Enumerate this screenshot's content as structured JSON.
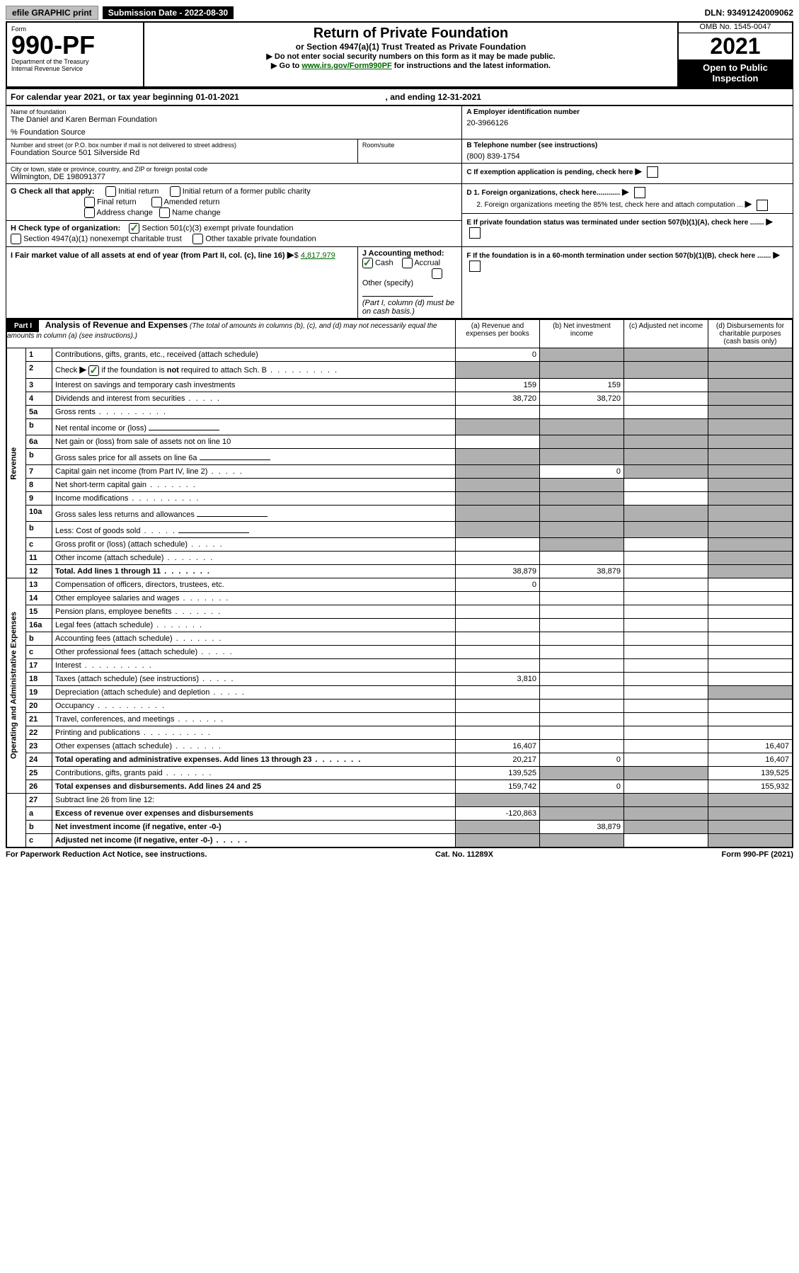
{
  "top": {
    "efile": "efile GRAPHIC print",
    "submission": "Submission Date - 2022-08-30",
    "dln": "DLN: 93491242009062"
  },
  "header": {
    "form_label": "Form",
    "form_num": "990-PF",
    "dept": "Department of the Treasury",
    "irs": "Internal Revenue Service",
    "title": "Return of Private Foundation",
    "subtitle": "or Section 4947(a)(1) Trust Treated as Private Foundation",
    "instr1": "▶ Do not enter social security numbers on this form as it may be made public.",
    "instr2_pre": "▶ Go to ",
    "instr2_link": "www.irs.gov/Form990PF",
    "instr2_post": " for instructions and the latest information.",
    "omb": "OMB No. 1545-0047",
    "year": "2021",
    "open": "Open to Public Inspection"
  },
  "calyear": {
    "text_pre": "For calendar year 2021, or tax year beginning ",
    "begin": "01-01-2021",
    "text_mid": " , and ending ",
    "end": "12-31-2021"
  },
  "info": {
    "name_label": "Name of foundation",
    "name": "The Daniel and Karen Berman Foundation",
    "care_of": "% Foundation Source",
    "addr_label": "Number and street (or P.O. box number if mail is not delivered to street address)",
    "addr": "Foundation Source 501 Silverside Rd",
    "room_label": "Room/suite",
    "city_label": "City or town, state or province, country, and ZIP or foreign postal code",
    "city": "Wilmington, DE 198091377",
    "a_label": "A Employer identification number",
    "a_val": "20-3966126",
    "b_label": "B Telephone number (see instructions)",
    "b_val": "(800) 839-1754",
    "c_label": "C If exemption application is pending, check here",
    "d1_label": "D 1. Foreign organizations, check here............",
    "d2_label": "2. Foreign organizations meeting the 85% test, check here and attach computation ...",
    "e_label": "E If private foundation status was terminated under section 507(b)(1)(A), check here .......",
    "f_label": "F If the foundation is in a 60-month termination under section 507(b)(1)(B), check here .......",
    "g_label": "G Check all that apply:",
    "g_opts": [
      "Initial return",
      "Initial return of a former public charity",
      "Final return",
      "Amended return",
      "Address change",
      "Name change"
    ],
    "h_label": "H Check type of organization:",
    "h_opt1": "Section 501(c)(3) exempt private foundation",
    "h_opt2": "Section 4947(a)(1) nonexempt charitable trust",
    "h_opt3": "Other taxable private foundation",
    "i_label": "I Fair market value of all assets at end of year (from Part II, col. (c), line 16)",
    "i_val": "4,817,979",
    "j_label": "J Accounting method:",
    "j_cash": "Cash",
    "j_accrual": "Accrual",
    "j_other": "Other (specify)",
    "j_note": "(Part I, column (d) must be on cash basis.)"
  },
  "part1": {
    "label": "Part I",
    "title": "Analysis of Revenue and Expenses",
    "note": "(The total of amounts in columns (b), (c), and (d) may not necessarily equal the amounts in column (a) (see instructions).)",
    "col_a": "(a) Revenue and expenses per books",
    "col_b": "(b) Net investment income",
    "col_c": "(c) Adjusted net income",
    "col_d": "(d) Disbursements for charitable purposes (cash basis only)"
  },
  "sections": {
    "revenue": "Revenue",
    "opex": "Operating and Administrative Expenses"
  },
  "rows": [
    {
      "n": "1",
      "desc": "Contributions, gifts, grants, etc., received (attach schedule)",
      "a": "0",
      "b": "",
      "c": "",
      "d": "",
      "grey_b": true,
      "grey_c": true,
      "grey_d": true
    },
    {
      "n": "2",
      "desc": "Check ▶ ☑ if the foundation is not required to attach Sch. B",
      "a": "",
      "b": "",
      "c": "",
      "d": "",
      "grey_a": true,
      "grey_b": true,
      "grey_c": true,
      "grey_d": true,
      "dots": true,
      "has_check": true
    },
    {
      "n": "3",
      "desc": "Interest on savings and temporary cash investments",
      "a": "159",
      "b": "159",
      "c": "",
      "d": "",
      "grey_d": true
    },
    {
      "n": "4",
      "desc": "Dividends and interest from securities",
      "a": "38,720",
      "b": "38,720",
      "c": "",
      "d": "",
      "grey_d": true,
      "dots_short": true
    },
    {
      "n": "5a",
      "desc": "Gross rents",
      "a": "",
      "b": "",
      "c": "",
      "d": "",
      "grey_d": true,
      "dots": true
    },
    {
      "n": "b",
      "desc": "Net rental income or (loss)",
      "a": "",
      "b": "",
      "c": "",
      "d": "",
      "grey_a": true,
      "grey_b": true,
      "grey_c": true,
      "grey_d": true,
      "has_input": true
    },
    {
      "n": "6a",
      "desc": "Net gain or (loss) from sale of assets not on line 10",
      "a": "",
      "b": "",
      "c": "",
      "d": "",
      "grey_b": true,
      "grey_c": true,
      "grey_d": true
    },
    {
      "n": "b",
      "desc": "Gross sales price for all assets on line 6a",
      "a": "",
      "b": "",
      "c": "",
      "d": "",
      "grey_a": true,
      "grey_b": true,
      "grey_c": true,
      "grey_d": true,
      "has_input": true
    },
    {
      "n": "7",
      "desc": "Capital gain net income (from Part IV, line 2)",
      "a": "",
      "b": "0",
      "c": "",
      "d": "",
      "grey_a": true,
      "grey_c": true,
      "grey_d": true,
      "dots_short": true
    },
    {
      "n": "8",
      "desc": "Net short-term capital gain",
      "a": "",
      "b": "",
      "c": "",
      "d": "",
      "grey_a": true,
      "grey_b": true,
      "grey_d": true,
      "dots_med": true
    },
    {
      "n": "9",
      "desc": "Income modifications",
      "a": "",
      "b": "",
      "c": "",
      "d": "",
      "grey_a": true,
      "grey_b": true,
      "grey_d": true,
      "dots": true
    },
    {
      "n": "10a",
      "desc": "Gross sales less returns and allowances",
      "a": "",
      "b": "",
      "c": "",
      "d": "",
      "grey_a": true,
      "grey_b": true,
      "grey_c": true,
      "grey_d": true,
      "has_input": true
    },
    {
      "n": "b",
      "desc": "Less: Cost of goods sold",
      "a": "",
      "b": "",
      "c": "",
      "d": "",
      "grey_a": true,
      "grey_b": true,
      "grey_c": true,
      "grey_d": true,
      "dots_short": true,
      "has_input": true
    },
    {
      "n": "c",
      "desc": "Gross profit or (loss) (attach schedule)",
      "a": "",
      "b": "",
      "c": "",
      "d": "",
      "grey_b": true,
      "grey_d": true,
      "dots_short": true
    },
    {
      "n": "11",
      "desc": "Other income (attach schedule)",
      "a": "",
      "b": "",
      "c": "",
      "d": "",
      "grey_d": true,
      "dots_med": true
    },
    {
      "n": "12",
      "desc": "Total. Add lines 1 through 11",
      "a": "38,879",
      "b": "38,879",
      "c": "",
      "d": "",
      "grey_d": true,
      "bold": true,
      "dots_med": true
    }
  ],
  "opex_rows": [
    {
      "n": "13",
      "desc": "Compensation of officers, directors, trustees, etc.",
      "a": "0",
      "b": "",
      "c": "",
      "d": ""
    },
    {
      "n": "14",
      "desc": "Other employee salaries and wages",
      "a": "",
      "b": "",
      "c": "",
      "d": "",
      "dots_med": true
    },
    {
      "n": "15",
      "desc": "Pension plans, employee benefits",
      "a": "",
      "b": "",
      "c": "",
      "d": "",
      "dots_med": true
    },
    {
      "n": "16a",
      "desc": "Legal fees (attach schedule)",
      "a": "",
      "b": "",
      "c": "",
      "d": "",
      "dots_med": true
    },
    {
      "n": "b",
      "desc": "Accounting fees (attach schedule)",
      "a": "",
      "b": "",
      "c": "",
      "d": "",
      "dots_med": true
    },
    {
      "n": "c",
      "desc": "Other professional fees (attach schedule)",
      "a": "",
      "b": "",
      "c": "",
      "d": "",
      "dots_short": true
    },
    {
      "n": "17",
      "desc": "Interest",
      "a": "",
      "b": "",
      "c": "",
      "d": "",
      "dots": true
    },
    {
      "n": "18",
      "desc": "Taxes (attach schedule) (see instructions)",
      "a": "3,810",
      "b": "",
      "c": "",
      "d": "",
      "dots_short": true
    },
    {
      "n": "19",
      "desc": "Depreciation (attach schedule) and depletion",
      "a": "",
      "b": "",
      "c": "",
      "d": "",
      "grey_d": true,
      "dots_short": true
    },
    {
      "n": "20",
      "desc": "Occupancy",
      "a": "",
      "b": "",
      "c": "",
      "d": "",
      "dots": true
    },
    {
      "n": "21",
      "desc": "Travel, conferences, and meetings",
      "a": "",
      "b": "",
      "c": "",
      "d": "",
      "dots_med": true
    },
    {
      "n": "22",
      "desc": "Printing and publications",
      "a": "",
      "b": "",
      "c": "",
      "d": "",
      "dots": true
    },
    {
      "n": "23",
      "desc": "Other expenses (attach schedule)",
      "a": "16,407",
      "b": "",
      "c": "",
      "d": "16,407",
      "dots_med": true
    },
    {
      "n": "24",
      "desc": "Total operating and administrative expenses. Add lines 13 through 23",
      "a": "20,217",
      "b": "0",
      "c": "",
      "d": "16,407",
      "bold": true,
      "dots_med": true
    },
    {
      "n": "25",
      "desc": "Contributions, gifts, grants paid",
      "a": "139,525",
      "b": "",
      "c": "",
      "d": "139,525",
      "grey_b": true,
      "grey_c": true,
      "dots_med": true
    },
    {
      "n": "26",
      "desc": "Total expenses and disbursements. Add lines 24 and 25",
      "a": "159,742",
      "b": "0",
      "c": "",
      "d": "155,932",
      "bold": true
    }
  ],
  "bottom_rows": [
    {
      "n": "27",
      "desc": "Subtract line 26 from line 12:",
      "a": "",
      "b": "",
      "c": "",
      "d": "",
      "grey_a": true,
      "grey_b": true,
      "grey_c": true,
      "grey_d": true
    },
    {
      "n": "a",
      "desc": "Excess of revenue over expenses and disbursements",
      "a": "-120,863",
      "b": "",
      "c": "",
      "d": "",
      "bold": true,
      "grey_b": true,
      "grey_c": true,
      "grey_d": true
    },
    {
      "n": "b",
      "desc": "Net investment income (if negative, enter -0-)",
      "a": "",
      "b": "38,879",
      "c": "",
      "d": "",
      "bold": true,
      "grey_a": true,
      "grey_c": true,
      "grey_d": true
    },
    {
      "n": "c",
      "desc": "Adjusted net income (if negative, enter -0-)",
      "a": "",
      "b": "",
      "c": "",
      "d": "",
      "bold": true,
      "grey_a": true,
      "grey_b": true,
      "grey_d": true,
      "dots_short": true
    }
  ],
  "footer": {
    "left": "For Paperwork Reduction Act Notice, see instructions.",
    "mid": "Cat. No. 11289X",
    "right": "Form 990-PF (2021)"
  }
}
